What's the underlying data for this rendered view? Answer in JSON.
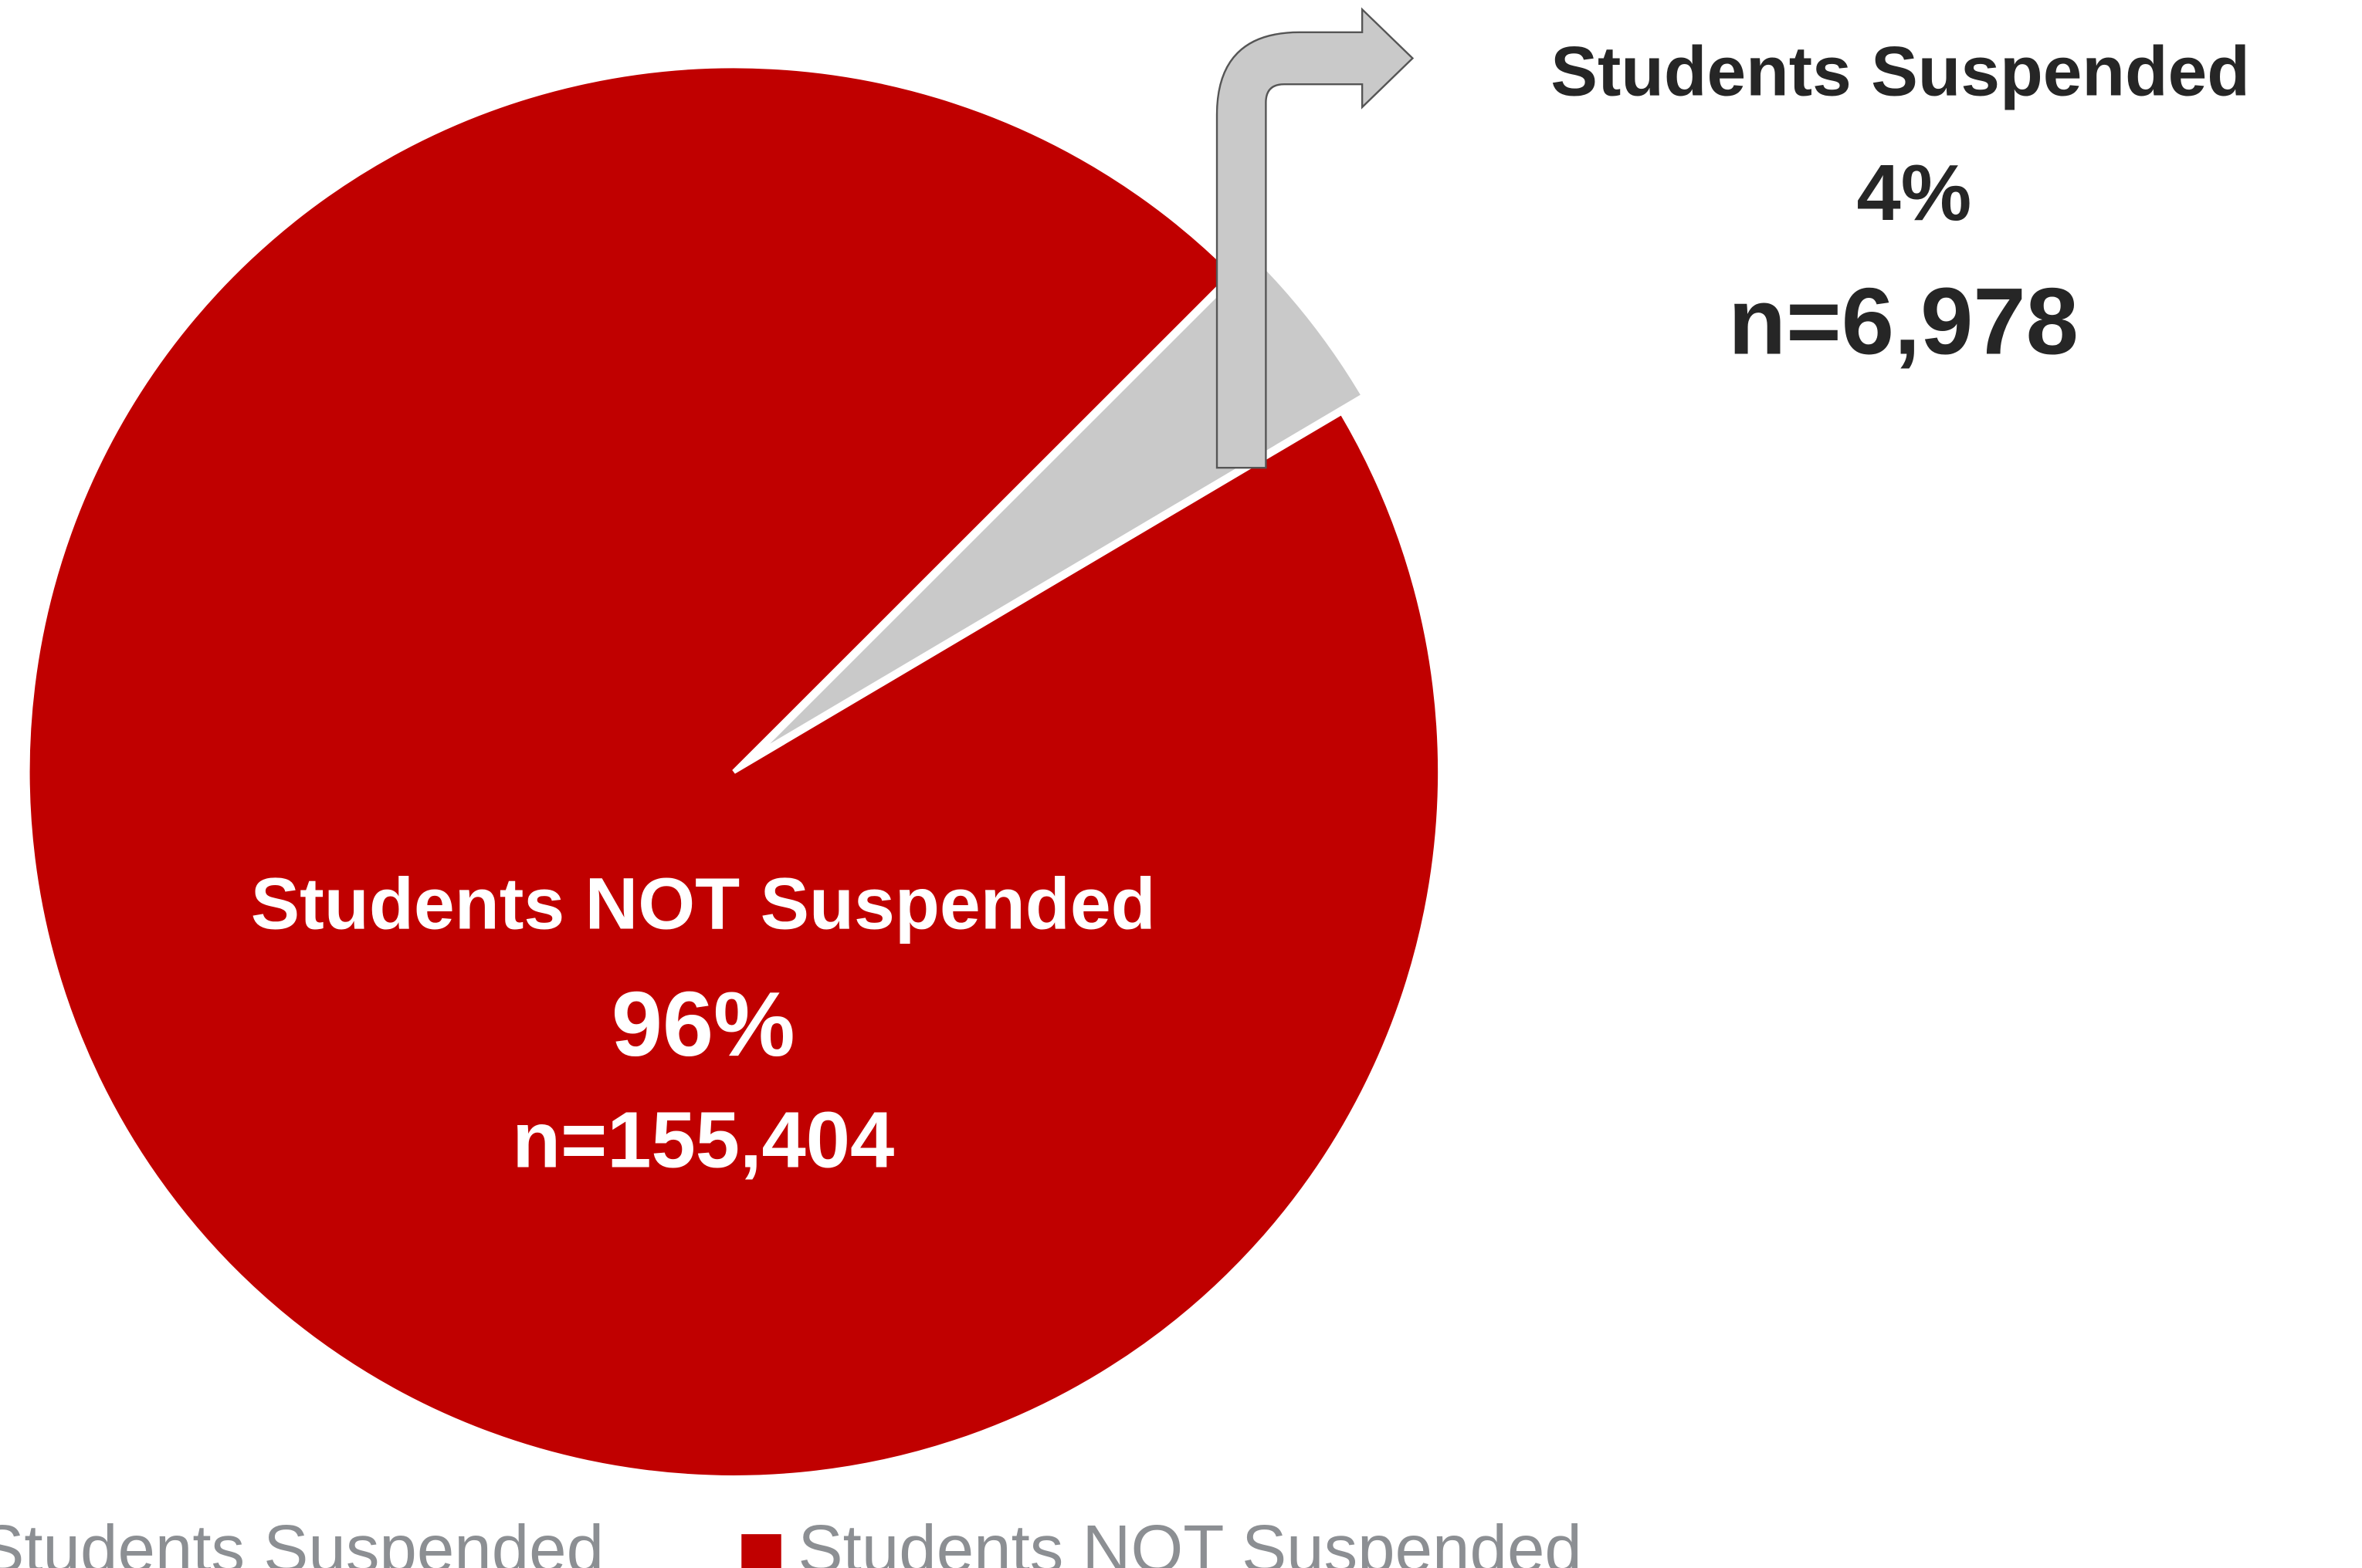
{
  "chart_data": {
    "type": "pie",
    "categories": [
      "Students Suspended",
      "Students NOT Suspended"
    ],
    "values": [
      4,
      96
    ],
    "value_labels": [
      "4%",
      "96%"
    ],
    "counts": [
      6978,
      155404
    ],
    "count_labels": [
      "n=6,978",
      "n=155,404"
    ],
    "colors": [
      "#c9c9c9",
      "#c00000"
    ],
    "legend": "bottom"
  }
}
